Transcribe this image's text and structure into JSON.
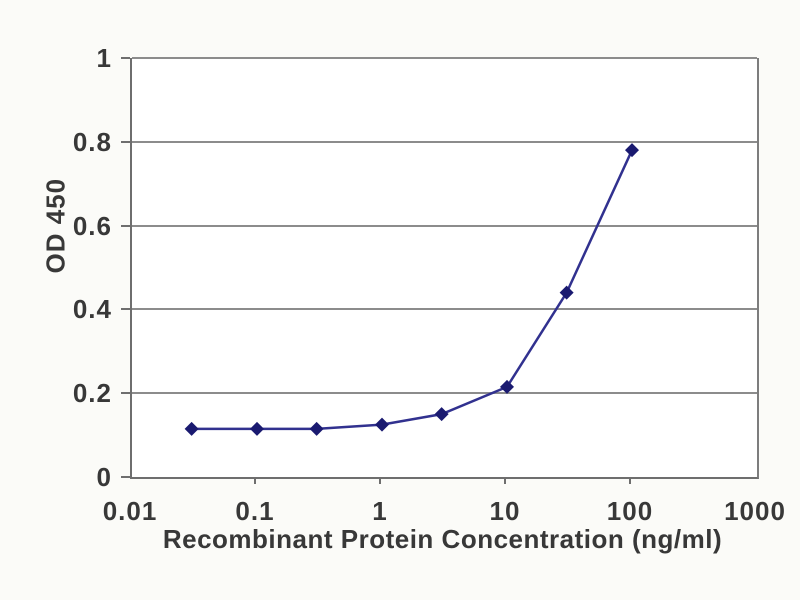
{
  "chart_data": {
    "type": "line",
    "title": "",
    "xlabel": "Recombinant Protein Concentration (ng/ml)",
    "ylabel": "OD 450",
    "x_scale": "log",
    "xlim": [
      0.01,
      1000
    ],
    "ylim": [
      0,
      1
    ],
    "x_tick_values": [
      0.01,
      0.1,
      1,
      10,
      100,
      1000
    ],
    "x_tick_labels": [
      "0.01",
      "0.1",
      "1",
      "10",
      "100",
      "1000"
    ],
    "y_tick_values": [
      0,
      0.2,
      0.4,
      0.6,
      0.8,
      1
    ],
    "y_tick_labels": [
      "0",
      "0.2",
      "0.4",
      "0.6",
      "0.8",
      "1"
    ],
    "grid": "horizontal",
    "legend": "none",
    "series": [
      {
        "name": "OD 450",
        "marker": "diamond",
        "x": [
          0.03,
          0.1,
          0.3,
          1,
          3,
          10,
          30,
          100
        ],
        "y": [
          0.115,
          0.115,
          0.115,
          0.125,
          0.15,
          0.215,
          0.44,
          0.78
        ]
      }
    ]
  },
  "colors": {
    "background": "#fbfbf8",
    "plot_background": "#ffffff",
    "gridline": "#8c8c8c",
    "axis": "#6e6e6e",
    "text": "#383838",
    "line": "#31318f",
    "marker": "#1a1a70"
  }
}
